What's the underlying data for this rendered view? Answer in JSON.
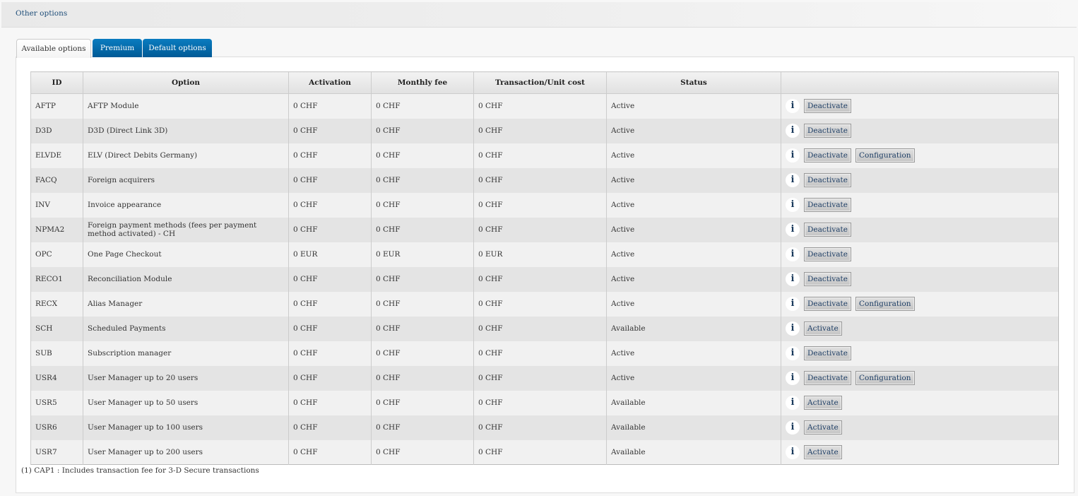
{
  "header": {
    "title": "Other options"
  },
  "tabs": [
    {
      "label": "Available options"
    },
    {
      "label": "Premium"
    },
    {
      "label": "Default options"
    }
  ],
  "table": {
    "columns": [
      "ID",
      "Option",
      "Activation",
      "Monthly fee",
      "Transaction/Unit cost",
      "Status",
      ""
    ],
    "rows": [
      {
        "id": "AFTP",
        "option": "AFTP Module",
        "activation": "0 CHF",
        "monthly": "0 CHF",
        "unit": "0 CHF",
        "status": "Active",
        "actions": [
          "Deactivate"
        ]
      },
      {
        "id": "D3D",
        "option": "D3D (Direct Link 3D)",
        "activation": "0 CHF",
        "monthly": "0 CHF",
        "unit": "0 CHF",
        "status": "Active",
        "actions": [
          "Deactivate"
        ]
      },
      {
        "id": "ELVDE",
        "option": "ELV (Direct Debits Germany)",
        "activation": "0 CHF",
        "monthly": "0 CHF",
        "unit": "0 CHF",
        "status": "Active",
        "actions": [
          "Deactivate",
          "Configuration"
        ]
      },
      {
        "id": "FACQ",
        "option": "Foreign acquirers",
        "activation": "0 CHF",
        "monthly": "0 CHF",
        "unit": "0 CHF",
        "status": "Active",
        "actions": [
          "Deactivate"
        ]
      },
      {
        "id": "INV",
        "option": "Invoice appearance",
        "activation": "0 CHF",
        "monthly": "0 CHF",
        "unit": "0 CHF",
        "status": "Active",
        "actions": [
          "Deactivate"
        ]
      },
      {
        "id": "NPMA2",
        "option": "Foreign payment methods (fees per payment method activated) - CH",
        "activation": "0 CHF",
        "monthly": "0 CHF",
        "unit": "0 CHF",
        "status": "Active",
        "actions": [
          "Deactivate"
        ]
      },
      {
        "id": "OPC",
        "option": "One Page Checkout",
        "activation": "0 EUR",
        "monthly": "0 EUR",
        "unit": "0 EUR",
        "status": "Active",
        "actions": [
          "Deactivate"
        ]
      },
      {
        "id": "RECO1",
        "option": "Reconciliation Module",
        "activation": "0 CHF",
        "monthly": "0 CHF",
        "unit": "0 CHF",
        "status": "Active",
        "actions": [
          "Deactivate"
        ]
      },
      {
        "id": "RECX",
        "option": "Alias Manager",
        "activation": "0 CHF",
        "monthly": "0 CHF",
        "unit": "0 CHF",
        "status": "Active",
        "actions": [
          "Deactivate",
          "Configuration"
        ]
      },
      {
        "id": "SCH",
        "option": "Scheduled Payments",
        "activation": "0 CHF",
        "monthly": "0 CHF",
        "unit": "0 CHF",
        "status": "Available",
        "actions": [
          "Activate"
        ]
      },
      {
        "id": "SUB",
        "option": "Subscription manager",
        "activation": "0 CHF",
        "monthly": "0 CHF",
        "unit": "0 CHF",
        "status": "Active",
        "actions": [
          "Deactivate"
        ]
      },
      {
        "id": "USR4",
        "option": "User Manager up to 20 users",
        "activation": "0 CHF",
        "monthly": "0 CHF",
        "unit": "0 CHF",
        "status": "Active",
        "actions": [
          "Deactivate",
          "Configuration"
        ]
      },
      {
        "id": "USR5",
        "option": "User Manager up to 50 users",
        "activation": "0 CHF",
        "monthly": "0 CHF",
        "unit": "0 CHF",
        "status": "Available",
        "actions": [
          "Activate"
        ]
      },
      {
        "id": "USR6",
        "option": "User Manager up to 100 users",
        "activation": "0 CHF",
        "monthly": "0 CHF",
        "unit": "0 CHF",
        "status": "Available",
        "actions": [
          "Activate"
        ]
      },
      {
        "id": "USR7",
        "option": "User Manager up to 200 users",
        "activation": "0 CHF",
        "monthly": "0 CHF",
        "unit": "0 CHF",
        "status": "Available",
        "actions": [
          "Activate"
        ]
      }
    ]
  },
  "info_icon": "i",
  "footnote": "(1) CAP1 : Includes transaction fee for 3-D Secure transactions"
}
